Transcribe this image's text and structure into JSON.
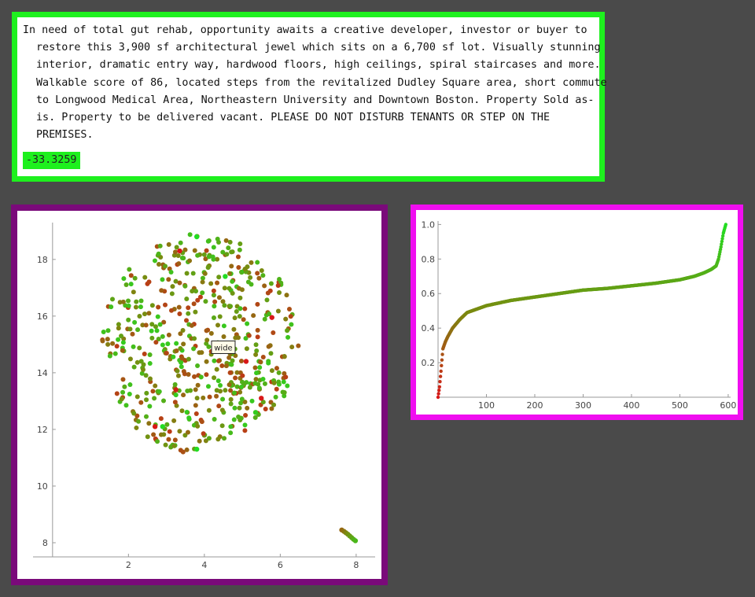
{
  "text_card": {
    "description": "In need of total gut rehab, opportunity awaits a creative developer, investor or buyer to restore this 3,900 sf architectural jewel which sits on a 6,700 sf lot. Visually stunning interior, dramatic entry way, hardwood floors, high ceilings, spiral staircases and more. Walkable score of 86, located steps from the revitalized Dudley Square area, short commute to Longwood Medical Area, Northeastern University and Downtown Boston. Property Sold as-is. Property to be delivered vacant. PLEASE DO NOT DISTURB TENANTS OR STEP ON THE PREMISES.",
    "score": "-33.3259"
  },
  "colors": {
    "text_frame": "#1ef01e",
    "scatter_frame": "#7a0a7a",
    "curve_frame": "#f00ef0",
    "point_low": "#d81818",
    "point_mid": "#7a8a10",
    "point_high": "#22dd22"
  },
  "chart_data": [
    {
      "type": "scatter",
      "title": "",
      "xlabel": "",
      "ylabel": "",
      "xlim": [
        -0.1,
        8.5
      ],
      "ylim": [
        7.5,
        19.3
      ],
      "xticks": [
        2,
        4,
        6,
        8
      ],
      "yticks": [
        8,
        10,
        12,
        14,
        16,
        18
      ],
      "tooltip": {
        "label": "wide",
        "x": 4.5,
        "y": 14.9
      },
      "cluster": {
        "center": [
          3.9,
          15.0
        ],
        "radius_x": 2.6,
        "radius_y": 3.9,
        "count": 560
      },
      "outlier_points": [
        [
          7.62,
          8.45
        ],
        [
          7.68,
          8.4
        ],
        [
          7.73,
          8.35
        ],
        [
          7.78,
          8.3
        ],
        [
          7.83,
          8.24
        ],
        [
          7.88,
          8.18
        ],
        [
          7.93,
          8.12
        ],
        [
          7.98,
          8.07
        ]
      ],
      "highlight_points": [
        {
          "x": 3.35,
          "y": 18.3,
          "c": 0.0
        },
        {
          "x": 3.8,
          "y": 18.8,
          "c": 1.0
        },
        {
          "x": 4.55,
          "y": 17.4,
          "c": 1.0
        },
        {
          "x": 5.78,
          "y": 15.95,
          "c": 0.0
        },
        {
          "x": 5.1,
          "y": 14.4,
          "c": 0.0
        },
        {
          "x": 3.25,
          "y": 13.4,
          "c": 0.05
        },
        {
          "x": 2.7,
          "y": 12.1,
          "c": 0.0
        },
        {
          "x": 5.5,
          "y": 13.1,
          "c": 0.0
        },
        {
          "x": 5.35,
          "y": 12.6,
          "c": 0.9
        },
        {
          "x": 3.8,
          "y": 11.3,
          "c": 1.0
        },
        {
          "x": 2.9,
          "y": 12.1,
          "c": 1.0
        }
      ]
    },
    {
      "type": "line",
      "title": "",
      "xlabel": "",
      "ylabel": "",
      "xlim": [
        0,
        605
      ],
      "ylim": [
        0,
        1.02
      ],
      "xticks": [
        100,
        200,
        300,
        400,
        500,
        600
      ],
      "yticks": [
        0.2,
        0.4,
        0.6,
        0.8,
        1.0
      ],
      "points": 595,
      "x": [
        0,
        3,
        6,
        10,
        15,
        20,
        30,
        45,
        60,
        80,
        100,
        150,
        200,
        250,
        300,
        350,
        400,
        450,
        500,
        530,
        550,
        565,
        575,
        580,
        585,
        590,
        595
      ],
      "values": [
        0.0,
        0.06,
        0.15,
        0.28,
        0.32,
        0.35,
        0.4,
        0.45,
        0.49,
        0.51,
        0.53,
        0.56,
        0.58,
        0.6,
        0.62,
        0.63,
        0.645,
        0.66,
        0.68,
        0.7,
        0.72,
        0.74,
        0.76,
        0.8,
        0.87,
        0.95,
        1.0
      ]
    }
  ]
}
